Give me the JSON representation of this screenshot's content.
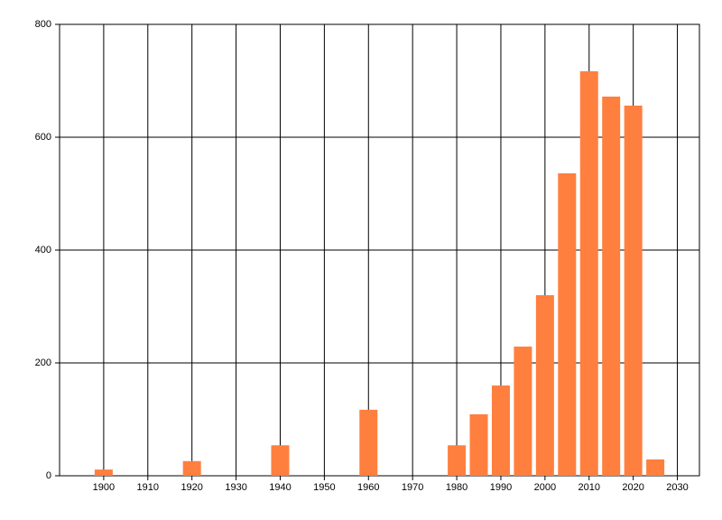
{
  "chart_data": {
    "type": "bar",
    "x": [
      1900,
      1920,
      1940,
      1960,
      1980,
      1985,
      1990,
      1995,
      2000,
      2005,
      2010,
      2015,
      2020,
      2025
    ],
    "values": [
      11,
      26,
      54,
      117,
      54,
      109,
      160,
      229,
      320,
      536,
      717,
      672,
      656,
      29
    ],
    "color": "#ff7f3f",
    "xlim": [
      1890,
      2035
    ],
    "xticks": [
      1900,
      1910,
      1920,
      1930,
      1940,
      1950,
      1960,
      1970,
      1980,
      1990,
      2000,
      2010,
      2020,
      2030
    ],
    "ylim": [
      0,
      800
    ],
    "yticks": [
      0,
      200,
      400,
      600,
      800
    ],
    "grid": true
  }
}
